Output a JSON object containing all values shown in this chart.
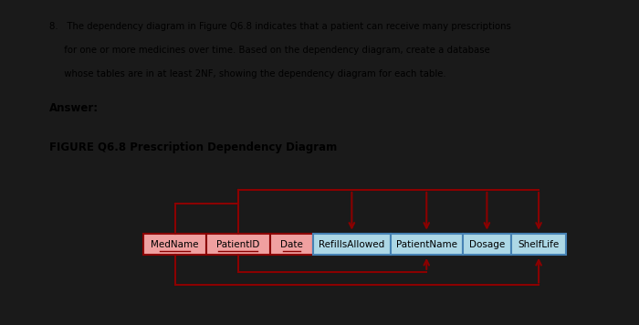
{
  "bg_color": "#1a1a1a",
  "panel_color": "#ffffff",
  "question_text_line1": "8.   The dependency diagram in Figure Q6.8 indicates that a patient can receive many prescriptions",
  "question_text_line2": "     for one or more medicines over time. Based on the dependency diagram, create a database",
  "question_text_line3": "     whose tables are in at least 2NF, showing the dependency diagram for each table.",
  "answer_label": "Answer:",
  "figure_title": "FIGURE Q6.8 Prescription Dependency Diagram",
  "fields_pink": [
    "MedName",
    "PatientID",
    "Date"
  ],
  "fields_blue": [
    "RefillsAllowed",
    "PatientName",
    "Dosage",
    "ShelfLife"
  ],
  "arrow_color": "#8b0000",
  "box_pink_fill": "#f0a0a0",
  "box_pink_border": "#8b0000",
  "box_blue_fill": "#add8e6",
  "box_blue_border": "#4682b4",
  "underline_color": "#8b0000",
  "widths": [
    1.1,
    1.1,
    0.75,
    1.35,
    1.25,
    0.85,
    0.95
  ]
}
